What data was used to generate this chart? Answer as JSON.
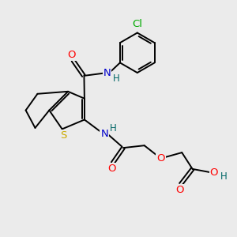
{
  "bg_color": "#ebebeb",
  "atom_colors": {
    "C": "#000000",
    "N": "#0000cc",
    "O": "#ff0000",
    "S": "#ccaa00",
    "Cl": "#00aa00",
    "H": "#006666"
  },
  "bond_color": "#000000",
  "bond_width": 1.4,
  "font_size": 8.5,
  "figsize": [
    3.0,
    3.0
  ],
  "dpi": 100,
  "xlim": [
    0,
    10
  ],
  "ylim": [
    0,
    10
  ]
}
